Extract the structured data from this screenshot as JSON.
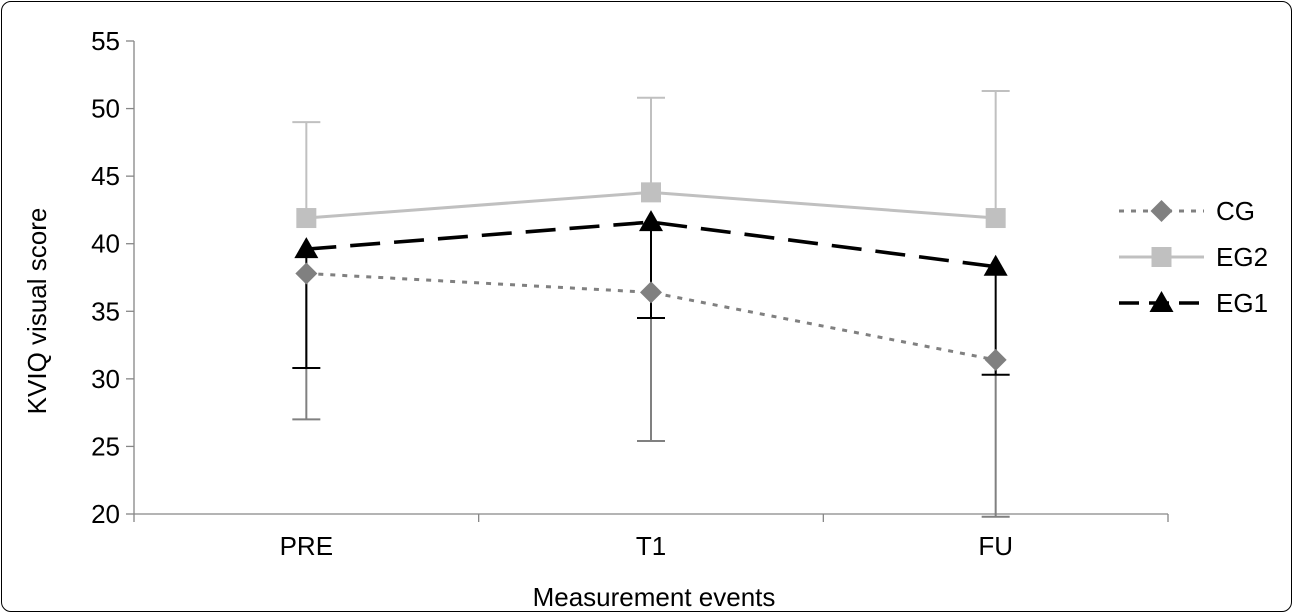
{
  "chart_data": {
    "type": "line",
    "categories": [
      "PRE",
      "T1",
      "FU"
    ],
    "xlabel": "Measurement events",
    "ylabel": "KVIQ visual score",
    "ylim": [
      20,
      55
    ],
    "yticks": [
      20,
      25,
      30,
      35,
      40,
      45,
      50,
      55
    ],
    "grid": false,
    "legend_position": "right",
    "error_bars": "one-sided",
    "series": [
      {
        "name": "CG",
        "values": [
          37.8,
          36.4,
          31.4
        ],
        "error_low": [
          27.0,
          25.4,
          19.8
        ],
        "error_direction": "down",
        "color": "#808080",
        "line_style": "dotted",
        "marker": "diamond"
      },
      {
        "name": "EG2",
        "values": [
          41.9,
          43.8,
          41.9
        ],
        "error_high": [
          49.0,
          50.8,
          51.3
        ],
        "error_direction": "up",
        "color": "#c0c0c0",
        "line_style": "solid",
        "marker": "square"
      },
      {
        "name": "EG1",
        "values": [
          39.6,
          41.6,
          38.3
        ],
        "error_low": [
          30.8,
          34.5,
          30.3
        ],
        "error_direction": "down",
        "color": "#000000",
        "line_style": "dashed",
        "marker": "triangle"
      }
    ]
  }
}
